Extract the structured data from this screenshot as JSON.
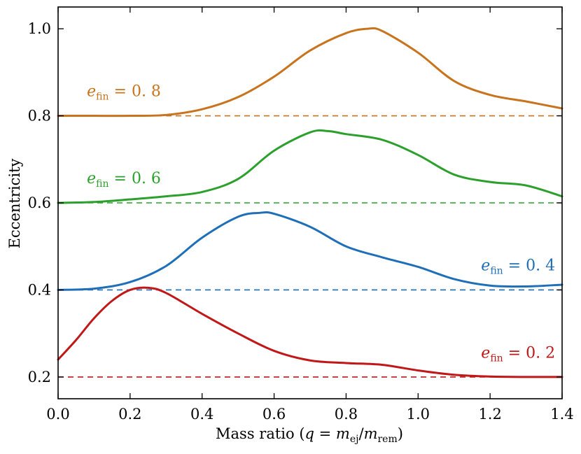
{
  "chart_data": {
    "type": "line",
    "xlabel": "Mass ratio (q = m_ej / m_rem)",
    "xlabel_parts": {
      "prefix": "Mass ratio (",
      "q": "q",
      "eq": " = ",
      "m1": "m",
      "sub1": "ej",
      "slash": "/",
      "m2": "m",
      "sub2": "rem",
      "suffix": ")"
    },
    "ylabel": "Eccentricity",
    "xlim": [
      0.0,
      1.4
    ],
    "ylim": [
      0.15,
      1.05
    ],
    "xticks": [
      0.0,
      0.2,
      0.4,
      0.6,
      0.8,
      1.0,
      1.2,
      1.4
    ],
    "xtick_labels": [
      "0.0",
      "0.2",
      "0.4",
      "0.6",
      "0.8",
      "1.0",
      "1.2",
      "1.4"
    ],
    "yticks": [
      0.2,
      0.4,
      0.6,
      0.8,
      1.0
    ],
    "ytick_labels": [
      "0.2",
      "0.4",
      "0.6",
      "0.8",
      "1.0"
    ],
    "grid": false,
    "series": [
      {
        "label_e": "e",
        "label_sub": "fin",
        "label_eq": " = 0. 8",
        "e_fin": 0.8,
        "color": "#c8731d",
        "label_at": [
          0.08,
          0.858
        ],
        "x": [
          0.0,
          0.1,
          0.2,
          0.3,
          0.4,
          0.5,
          0.6,
          0.7,
          0.8,
          0.86,
          0.9,
          1.0,
          1.1,
          1.2,
          1.3,
          1.4
        ],
        "y": [
          0.8,
          0.8,
          0.8,
          0.802,
          0.815,
          0.843,
          0.89,
          0.95,
          0.99,
          1.0,
          0.995,
          0.945,
          0.88,
          0.848,
          0.833,
          0.817
        ]
      },
      {
        "label_e": "e",
        "label_sub": "fin",
        "label_eq": " = 0. 6",
        "e_fin": 0.6,
        "color": "#2ca02c",
        "label_at": [
          0.08,
          0.658
        ],
        "x": [
          0.0,
          0.1,
          0.2,
          0.3,
          0.4,
          0.5,
          0.6,
          0.7,
          0.75,
          0.8,
          0.9,
          1.0,
          1.1,
          1.2,
          1.3,
          1.4
        ],
        "y": [
          0.6,
          0.602,
          0.608,
          0.615,
          0.625,
          0.655,
          0.72,
          0.762,
          0.765,
          0.758,
          0.745,
          0.71,
          0.665,
          0.648,
          0.64,
          0.615
        ]
      },
      {
        "label_e": "e",
        "label_sub": "fin",
        "label_eq": " = 0. 4",
        "e_fin": 0.4,
        "color": "#1f6fb8",
        "label_at": [
          1.175,
          0.458
        ],
        "x": [
          0.0,
          0.1,
          0.2,
          0.3,
          0.4,
          0.5,
          0.56,
          0.6,
          0.7,
          0.8,
          0.9,
          1.0,
          1.1,
          1.2,
          1.3,
          1.4
        ],
        "y": [
          0.4,
          0.403,
          0.418,
          0.455,
          0.52,
          0.568,
          0.577,
          0.575,
          0.545,
          0.5,
          0.475,
          0.453,
          0.425,
          0.41,
          0.408,
          0.412
        ]
      },
      {
        "label_e": "e",
        "label_sub": "fin",
        "label_eq": " = 0. 2",
        "e_fin": 0.2,
        "color": "#c01818",
        "label_at": [
          1.175,
          0.257
        ],
        "x": [
          0.0,
          0.05,
          0.1,
          0.15,
          0.2,
          0.25,
          0.3,
          0.4,
          0.5,
          0.6,
          0.7,
          0.8,
          0.9,
          1.0,
          1.1,
          1.2,
          1.3,
          1.4
        ],
        "y": [
          0.24,
          0.285,
          0.335,
          0.375,
          0.4,
          0.405,
          0.393,
          0.345,
          0.3,
          0.26,
          0.238,
          0.232,
          0.228,
          0.215,
          0.205,
          0.201,
          0.2,
          0.2
        ]
      }
    ]
  }
}
